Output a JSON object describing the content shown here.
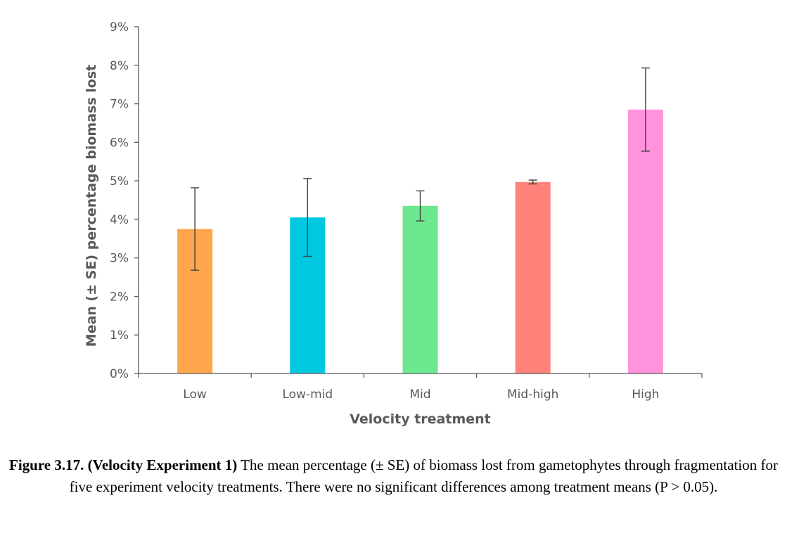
{
  "chart_data": {
    "type": "bar",
    "categories": [
      "Low",
      "Low-mid",
      "Mid",
      "Mid-high",
      "High"
    ],
    "values": [
      3.75,
      4.05,
      4.35,
      4.97,
      6.85
    ],
    "error_se": [
      1.07,
      1.01,
      0.39,
      0.05,
      1.08
    ],
    "colors": [
      "#FFA64D",
      "#00C8E0",
      "#6EE88E",
      "#FF837A",
      "#FF93DC"
    ],
    "xlabel": "Velocity treatment",
    "ylabel": "Mean (± SE) percentage biomass lost",
    "ylim": [
      0,
      9
    ],
    "yticks": [
      0,
      1,
      2,
      3,
      4,
      5,
      6,
      7,
      8,
      9
    ],
    "ytick_labels": [
      "0%",
      "1%",
      "2%",
      "3%",
      "4%",
      "5%",
      "6%",
      "7%",
      "8%",
      "9%"
    ],
    "grid": false,
    "legend": "none"
  },
  "caption": {
    "bold_part": "Figure 3.17. (Velocity Experiment 1)",
    "text": " The mean percentage (± SE) of biomass lost from gametophytes through fragmentation for five experiment velocity treatments. There were no significant differences among treatment means (P > 0.05)."
  }
}
